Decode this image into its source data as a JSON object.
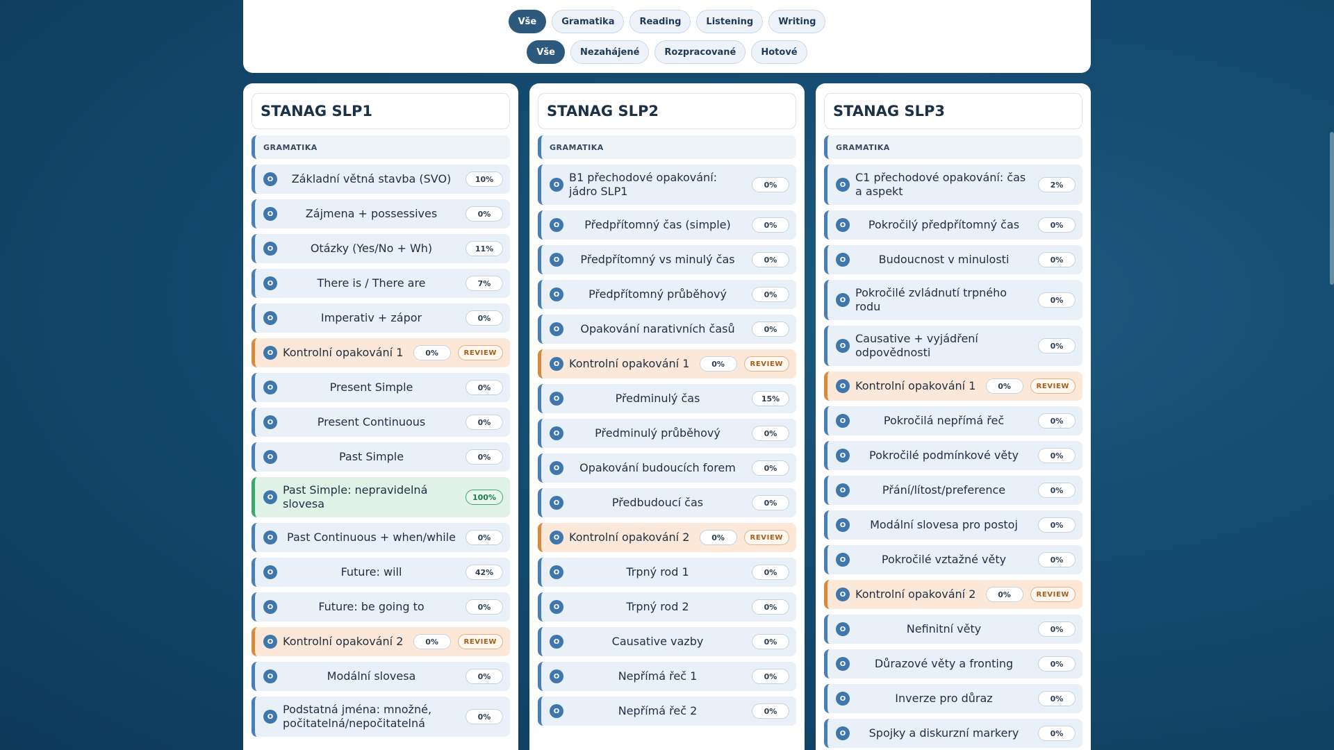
{
  "filters": {
    "category": [
      "Vše",
      "Gramatika",
      "Reading",
      "Listening",
      "Writing"
    ],
    "status": [
      "Vše",
      "Nezahájené",
      "Rozpracované",
      "Hotové"
    ]
  },
  "columns": [
    {
      "title": "STANAG SLP1",
      "section": "GRAMATIKA",
      "lessons": [
        {
          "title": "Základní větná stavba (SVO)",
          "pct": "10%",
          "type": "normal"
        },
        {
          "title": "Zájmena + possessives",
          "pct": "0%",
          "type": "normal"
        },
        {
          "title": "Otázky (Yes/No + Wh)",
          "pct": "11%",
          "type": "normal"
        },
        {
          "title": "There is / There are",
          "pct": "7%",
          "type": "normal"
        },
        {
          "title": "Imperativ + zápor",
          "pct": "0%",
          "type": "normal"
        },
        {
          "title": "Kontrolní opakování 1",
          "pct": "0%",
          "type": "review",
          "badge": "REVIEW"
        },
        {
          "title": "Present Simple",
          "pct": "0%",
          "type": "normal"
        },
        {
          "title": "Present Continuous",
          "pct": "0%",
          "type": "normal"
        },
        {
          "title": "Past Simple",
          "pct": "0%",
          "type": "normal"
        },
        {
          "title": "Past Simple: nepravidelná slovesa",
          "pct": "100%",
          "type": "done"
        },
        {
          "title": "Past Continuous + when/while",
          "pct": "0%",
          "type": "normal"
        },
        {
          "title": "Future: will",
          "pct": "42%",
          "type": "normal"
        },
        {
          "title": "Future: be going to",
          "pct": "0%",
          "type": "normal"
        },
        {
          "title": "Kontrolní opakování 2",
          "pct": "0%",
          "type": "review",
          "badge": "REVIEW"
        },
        {
          "title": "Modální slovesa",
          "pct": "0%",
          "type": "normal"
        },
        {
          "title": "Podstatná jména: množné, počitatelná/nepočitatelná",
          "pct": "0%",
          "type": "normal"
        }
      ]
    },
    {
      "title": "STANAG SLP2",
      "section": "GRAMATIKA",
      "lessons": [
        {
          "title": "B1 přechodové opakování: jádro SLP1",
          "pct": "0%",
          "type": "normal"
        },
        {
          "title": "Předpřítomný čas (simple)",
          "pct": "0%",
          "type": "normal"
        },
        {
          "title": "Předpřítomný vs minulý čas",
          "pct": "0%",
          "type": "normal"
        },
        {
          "title": "Předpřítomný průběhový",
          "pct": "0%",
          "type": "normal"
        },
        {
          "title": "Opakování narativních časů",
          "pct": "0%",
          "type": "normal"
        },
        {
          "title": "Kontrolní opakování 1",
          "pct": "0%",
          "type": "review",
          "badge": "REVIEW"
        },
        {
          "title": "Předminulý čas",
          "pct": "15%",
          "type": "normal"
        },
        {
          "title": "Předminulý průběhový",
          "pct": "0%",
          "type": "normal"
        },
        {
          "title": "Opakování budoucích forem",
          "pct": "0%",
          "type": "normal"
        },
        {
          "title": "Předbudoucí čas",
          "pct": "0%",
          "type": "normal"
        },
        {
          "title": "Kontrolní opakování 2",
          "pct": "0%",
          "type": "review",
          "badge": "REVIEW"
        },
        {
          "title": "Trpný rod 1",
          "pct": "0%",
          "type": "normal"
        },
        {
          "title": "Trpný rod 2",
          "pct": "0%",
          "type": "normal"
        },
        {
          "title": "Causative vazby",
          "pct": "0%",
          "type": "normal"
        },
        {
          "title": "Nepřímá řeč 1",
          "pct": "0%",
          "type": "normal"
        },
        {
          "title": "Nepřímá řeč 2",
          "pct": "0%",
          "type": "normal"
        }
      ]
    },
    {
      "title": "STANAG SLP3",
      "section": "GRAMATIKA",
      "lessons": [
        {
          "title": "C1 přechodové opakování: čas a aspekt",
          "pct": "2%",
          "type": "normal"
        },
        {
          "title": "Pokročilý předpřítomný čas",
          "pct": "0%",
          "type": "normal"
        },
        {
          "title": "Budoucnost v minulosti",
          "pct": "0%",
          "type": "normal"
        },
        {
          "title": "Pokročilé zvládnutí trpného rodu",
          "pct": "0%",
          "type": "normal"
        },
        {
          "title": "Causative + vyjádření odpovědnosti",
          "pct": "0%",
          "type": "normal"
        },
        {
          "title": "Kontrolní opakování 1",
          "pct": "0%",
          "type": "review",
          "badge": "REVIEW"
        },
        {
          "title": "Pokročilá nepřímá řeč",
          "pct": "0%",
          "type": "normal"
        },
        {
          "title": "Pokročilé podmínkové věty",
          "pct": "0%",
          "type": "normal"
        },
        {
          "title": "Přání/lítost/preference",
          "pct": "0%",
          "type": "normal"
        },
        {
          "title": "Modální slovesa pro postoj",
          "pct": "0%",
          "type": "normal"
        },
        {
          "title": "Pokročilé vztažné věty",
          "pct": "0%",
          "type": "normal"
        },
        {
          "title": "Kontrolní opakování 2",
          "pct": "0%",
          "type": "review",
          "badge": "REVIEW"
        },
        {
          "title": "Nefinitní věty",
          "pct": "0%",
          "type": "normal"
        },
        {
          "title": "Důrazové věty a fronting",
          "pct": "0%",
          "type": "normal"
        },
        {
          "title": "Inverze pro důraz",
          "pct": "0%",
          "type": "normal"
        },
        {
          "title": "Spojky a diskurzní markery",
          "pct": "0%",
          "type": "normal"
        }
      ]
    }
  ]
}
